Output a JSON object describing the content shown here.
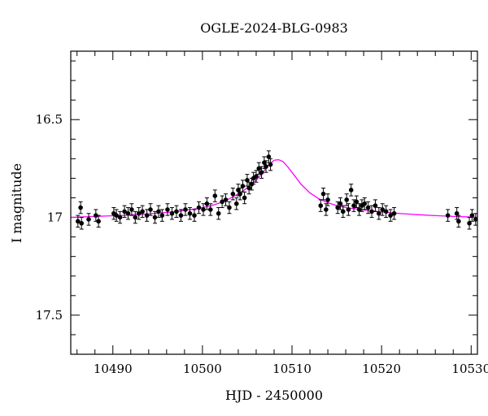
{
  "chart_data": {
    "type": "scatter",
    "title": "OGLE-2024-BLG-0983",
    "xlabel": "HJD - 2450000",
    "ylabel": "I magnitude",
    "xlim": [
      10485.3,
      10530.7
    ],
    "ylim": [
      17.7,
      16.15
    ],
    "y_inverted": true,
    "x_ticks": [
      10490,
      10500,
      10510,
      10520,
      10530
    ],
    "y_ticks": [
      16.5,
      17,
      17.5
    ],
    "x_tick_labels": [
      "10490",
      "10500",
      "10510",
      "10520",
      "10530"
    ],
    "y_tick_labels": [
      "16.5",
      "17",
      "17.5"
    ],
    "grid": false,
    "point_color": "#000000",
    "model_color": "#ff00ff",
    "model": {
      "name": "",
      "baseline_mag": 17.0,
      "peak_time": 10508.2,
      "peak_mag": 16.7,
      "x": [
        10485.3,
        10488,
        10491,
        10494,
        10496,
        10498,
        10500,
        10501,
        10502,
        10503,
        10504,
        10505,
        10506,
        10506.5,
        10507,
        10507.5,
        10508,
        10508.5,
        10509,
        10509.5,
        10510,
        10511,
        10512,
        10513,
        10514,
        10515,
        10516,
        10518,
        10520,
        10522,
        10524,
        10526,
        10528,
        10530,
        10530.7
      ],
      "y": [
        17.0,
        16.995,
        16.99,
        16.982,
        16.975,
        16.965,
        16.95,
        16.94,
        16.925,
        16.905,
        16.88,
        16.85,
        16.81,
        16.785,
        16.755,
        16.728,
        16.708,
        16.705,
        16.715,
        16.74,
        16.77,
        16.83,
        16.875,
        16.905,
        16.925,
        16.94,
        16.95,
        16.962,
        16.972,
        16.98,
        16.986,
        16.991,
        16.995,
        16.998,
        17.0
      ]
    },
    "points": {
      "x": [
        10486.1,
        10486.4,
        10486.5,
        10487.3,
        10488.1,
        10488.4,
        10490.1,
        10490.4,
        10490.8,
        10491.3,
        10491.7,
        10492.1,
        10492.5,
        10492.9,
        10493.3,
        10493.8,
        10494.2,
        10494.7,
        10495.1,
        10495.5,
        10496.1,
        10496.6,
        10497.1,
        10497.6,
        10498.1,
        10498.6,
        10499.1,
        10499.6,
        10500.1,
        10500.5,
        10500.9,
        10501.4,
        10501.8,
        10502.2,
        10502.6,
        10503.0,
        10503.4,
        10503.8,
        10504.0,
        10504.2,
        10504.5,
        10504.7,
        10505.0,
        10505.2,
        10505.5,
        10505.7,
        10506.0,
        10506.3,
        10506.6,
        10506.9,
        10507.1,
        10507.4,
        10507.6,
        10513.2,
        10513.5,
        10513.8,
        10514.0,
        10515.1,
        10515.4,
        10515.7,
        10516.1,
        10516.3,
        10516.6,
        10516.9,
        10517.2,
        10517.5,
        10517.8,
        10518.1,
        10518.5,
        10518.9,
        10519.3,
        10519.7,
        10520.1,
        10520.5,
        10521.0,
        10521.4,
        10527.4,
        10528.4,
        10528.6,
        10529.8,
        10530.1,
        10530.5
      ],
      "y": [
        17.02,
        16.95,
        17.03,
        17.01,
        16.99,
        17.02,
        16.98,
        16.99,
        17.0,
        16.97,
        16.98,
        16.96,
        17.0,
        16.98,
        16.97,
        16.99,
        16.96,
        17.0,
        16.97,
        16.99,
        16.96,
        16.98,
        16.97,
        16.99,
        16.96,
        16.98,
        16.99,
        16.95,
        16.96,
        16.93,
        16.96,
        16.89,
        16.98,
        16.92,
        16.91,
        16.95,
        16.88,
        16.93,
        16.86,
        16.88,
        16.84,
        16.9,
        16.81,
        16.85,
        16.83,
        16.8,
        16.79,
        16.75,
        16.77,
        16.72,
        16.74,
        16.69,
        16.73,
        16.94,
        16.88,
        16.96,
        16.91,
        16.95,
        16.93,
        16.97,
        16.91,
        16.96,
        16.86,
        16.94,
        16.92,
        16.96,
        16.94,
        16.93,
        16.95,
        16.97,
        16.94,
        16.98,
        16.96,
        16.97,
        16.99,
        16.98,
        16.99,
        16.98,
        17.02,
        17.03,
        16.99,
        17.01
      ],
      "err": [
        0.03,
        0.03,
        0.03,
        0.03,
        0.03,
        0.03,
        0.03,
        0.03,
        0.03,
        0.03,
        0.03,
        0.03,
        0.03,
        0.03,
        0.03,
        0.03,
        0.03,
        0.03,
        0.03,
        0.03,
        0.03,
        0.03,
        0.03,
        0.03,
        0.03,
        0.03,
        0.03,
        0.03,
        0.03,
        0.03,
        0.03,
        0.03,
        0.03,
        0.03,
        0.03,
        0.03,
        0.03,
        0.03,
        0.03,
        0.03,
        0.03,
        0.03,
        0.03,
        0.03,
        0.03,
        0.03,
        0.03,
        0.03,
        0.03,
        0.03,
        0.03,
        0.03,
        0.03,
        0.03,
        0.03,
        0.03,
        0.03,
        0.03,
        0.03,
        0.03,
        0.03,
        0.03,
        0.03,
        0.03,
        0.03,
        0.03,
        0.03,
        0.03,
        0.03,
        0.03,
        0.03,
        0.03,
        0.03,
        0.03,
        0.03,
        0.03,
        0.03,
        0.03,
        0.03,
        0.03,
        0.03,
        0.03
      ]
    }
  }
}
